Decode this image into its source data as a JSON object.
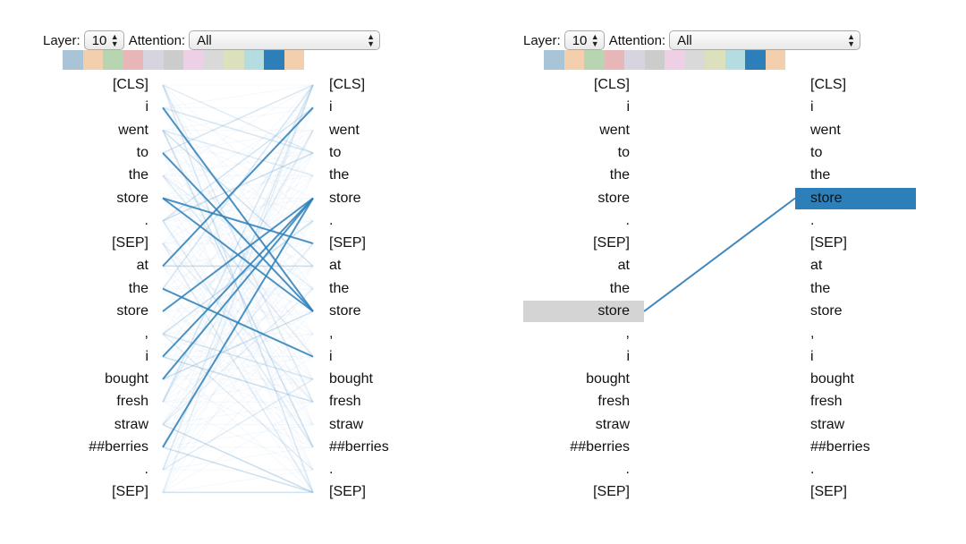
{
  "controls": {
    "layer_label": "Layer:",
    "layer_value": "10",
    "attention_label": "Attention:",
    "attention_value": "All"
  },
  "head_colors": [
    "#a9c3d7",
    "#f3cfae",
    "#b7d5b1",
    "#e9b6b8",
    "#d7d4df",
    "#cccccc",
    "#edd0e6",
    "#d9d9d9",
    "#dde0bd",
    "#b4dde2",
    "#2c7fb8",
    "#f3cfae"
  ],
  "left_tokens": [
    "[CLS]",
    "i",
    "went",
    "to",
    "the",
    "store",
    ".",
    "[SEP]",
    "at",
    "the",
    "store",
    ",",
    "i",
    "bought",
    "fresh",
    "straw",
    "##berries",
    ".",
    "[SEP]"
  ],
  "right_tokens": [
    "[CLS]",
    "i",
    "went",
    "to",
    "the",
    "store",
    ".",
    "[SEP]",
    "at",
    "the",
    "store",
    ",",
    "i",
    "bought",
    "fresh",
    "straw",
    "##berries",
    ".",
    "[SEP]"
  ],
  "left_panel": {
    "strong_edges": [
      [
        1,
        10
      ],
      [
        5,
        10
      ],
      [
        5,
        7
      ],
      [
        10,
        5
      ],
      [
        13,
        5
      ],
      [
        12,
        5
      ],
      [
        8,
        1
      ],
      [
        16,
        5
      ],
      [
        3,
        10
      ],
      [
        9,
        12
      ]
    ],
    "weak_edges": [
      [
        0,
        3
      ],
      [
        0,
        14
      ],
      [
        2,
        8
      ],
      [
        2,
        16
      ],
      [
        4,
        9
      ],
      [
        4,
        12
      ],
      [
        6,
        1
      ],
      [
        6,
        3
      ],
      [
        7,
        14
      ],
      [
        7,
        18
      ],
      [
        9,
        0
      ],
      [
        11,
        6
      ],
      [
        11,
        17
      ],
      [
        14,
        2
      ],
      [
        14,
        0
      ],
      [
        15,
        18
      ],
      [
        15,
        9
      ],
      [
        17,
        0
      ],
      [
        18,
        18
      ],
      [
        16,
        18
      ],
      [
        17,
        13
      ],
      [
        2,
        4
      ],
      [
        3,
        0
      ],
      [
        13,
        10
      ],
      [
        15,
        7
      ],
      [
        6,
        16
      ],
      [
        11,
        13
      ],
      [
        8,
        8
      ],
      [
        18,
        0
      ],
      [
        0,
        18
      ],
      [
        1,
        3
      ],
      [
        12,
        14
      ]
    ]
  },
  "right_panel": {
    "selected_left_index": 10,
    "selected_right_index": 5
  }
}
